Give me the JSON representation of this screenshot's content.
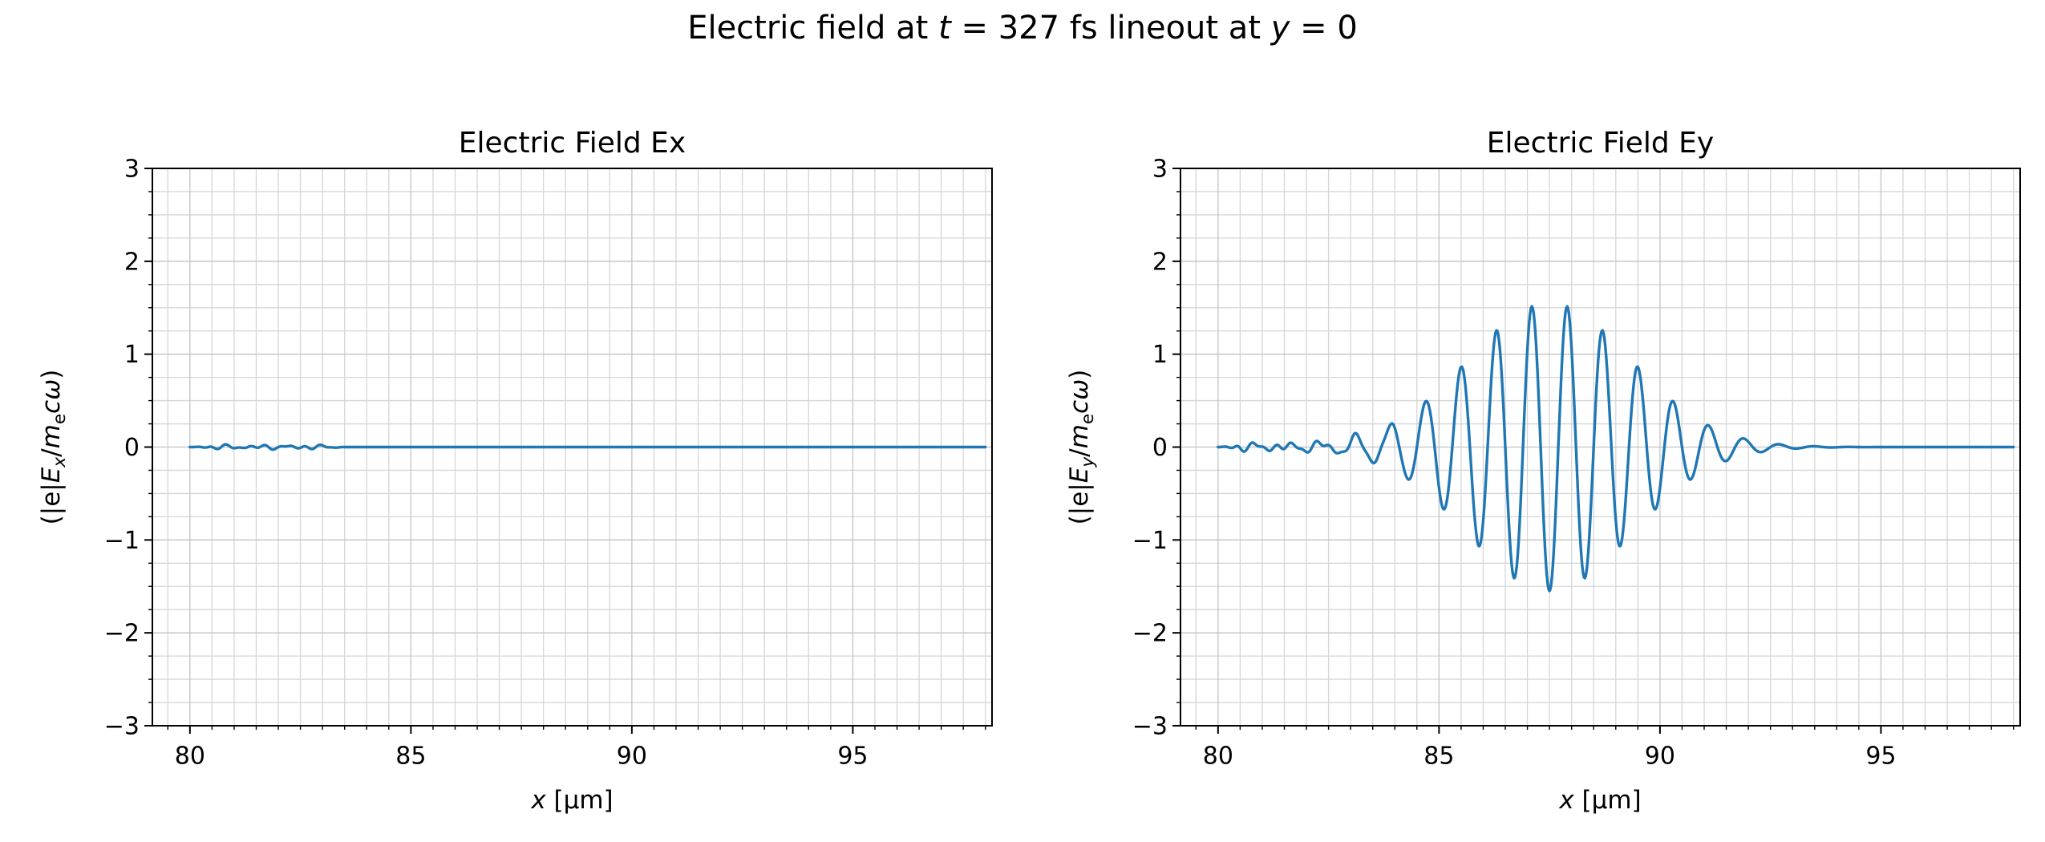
{
  "title": {
    "text": "Electric field at t = 327 fs lineout at y = 0",
    "segments": [
      {
        "t": "Electric field at "
      },
      {
        "t": "t",
        "i": true
      },
      {
        "t": " = 327 fs lineout at "
      },
      {
        "t": "y",
        "i": true
      },
      {
        "t": " = 0"
      }
    ]
  },
  "colors": {
    "line": "#1f77b4",
    "grid_major": "#c3c3c3",
    "grid_minor": "#d6d6d6",
    "spine": "#000000",
    "background": "#ffffff",
    "text": "#000000"
  },
  "chart_data": [
    {
      "type": "line",
      "name": "ex",
      "title": "Electric Field Ex",
      "xlabel": "x [μm]",
      "ylabel": "(|e|Ex/mecω)",
      "xlabel_segments": [
        {
          "t": "x",
          "i": true
        },
        {
          "t": " [μm]"
        }
      ],
      "ylabel_segments": [
        {
          "t": "(|e|"
        },
        {
          "t": "E",
          "i": true
        },
        {
          "t": "x",
          "i": true,
          "sub": true
        },
        {
          "t": "/"
        },
        {
          "t": "m",
          "i": true
        },
        {
          "t": "e",
          "sub": true
        },
        {
          "t": "c",
          "i": true
        },
        {
          "t": "ω",
          "i": true
        },
        {
          "t": ")"
        }
      ],
      "xlim": [
        79.15,
        98.15
      ],
      "ylim": [
        -3,
        3
      ],
      "xticks": [
        80,
        85,
        90,
        95
      ],
      "yticks": [
        -3,
        -2,
        -1,
        0,
        1,
        2,
        3
      ],
      "x_minor_step": 0.5,
      "y_minor_step": 0.25,
      "grid": "major+minor",
      "line_color": "#1f77b4",
      "series": [
        {
          "name": "Ex",
          "description": "essentially zero everywhere; tiny noise near x=80-83.5, peak |Ex| ~ 0.03",
          "signal": {
            "xstart": 80,
            "xend": 98,
            "dx": 0.02,
            "components": [
              {
                "type": "wiggle",
                "xstart": 80,
                "xend": 83.5,
                "amplitude": 0.03,
                "freqs": [
                  1.4,
                  2.3,
                  3.3
                ],
                "phases": [
                  0.6,
                  2.1,
                  3.9
                ],
                "fade": 0.5
              }
            ]
          }
        }
      ]
    },
    {
      "type": "line",
      "name": "ey",
      "title": "Electric Field Ey",
      "xlabel": "x [μm]",
      "ylabel": "(|e|Ey/mecω)",
      "xlabel_segments": [
        {
          "t": "x",
          "i": true
        },
        {
          "t": " [μm]"
        }
      ],
      "ylabel_segments": [
        {
          "t": "(|e|"
        },
        {
          "t": "E",
          "i": true
        },
        {
          "t": "y",
          "i": true,
          "sub": true
        },
        {
          "t": "/"
        },
        {
          "t": "m",
          "i": true
        },
        {
          "t": "e",
          "sub": true
        },
        {
          "t": "c",
          "i": true
        },
        {
          "t": "ω",
          "i": true
        },
        {
          "t": ")"
        }
      ],
      "xlim": [
        79.15,
        98.15
      ],
      "ylim": [
        -3,
        3
      ],
      "xticks": [
        80,
        85,
        90,
        95
      ],
      "yticks": [
        -3,
        -2,
        -1,
        0,
        1,
        2,
        3
      ],
      "x_minor_step": 0.5,
      "y_minor_step": 0.25,
      "grid": "major+minor",
      "line_color": "#1f77b4",
      "series": [
        {
          "name": "Ey",
          "description": "laser wave packet centered near x=87.5 um, peak amplitude ~1.55, wavelength ~0.8 um, oscillations visible ~84-91.5 um; small noise ~+/-0.06 for x=80-84; flat zero for x>92",
          "signal": {
            "xstart": 80,
            "xend": 98,
            "dx": 0.02,
            "components": [
              {
                "type": "wiggle",
                "xstart": 80,
                "xend": 84.2,
                "amplitude": 0.06,
                "freqs": [
                  1.3,
                  2.2,
                  3.4
                ],
                "phases": [
                  0.9,
                  2.6,
                  4.5
                ],
                "fade": 0.5
              },
              {
                "type": "wavepacket",
                "center": 87.5,
                "sigma": 1.85,
                "amplitude": 1.55,
                "wavelength": 0.8,
                "phase": -1.5708
              }
            ]
          }
        }
      ]
    }
  ]
}
